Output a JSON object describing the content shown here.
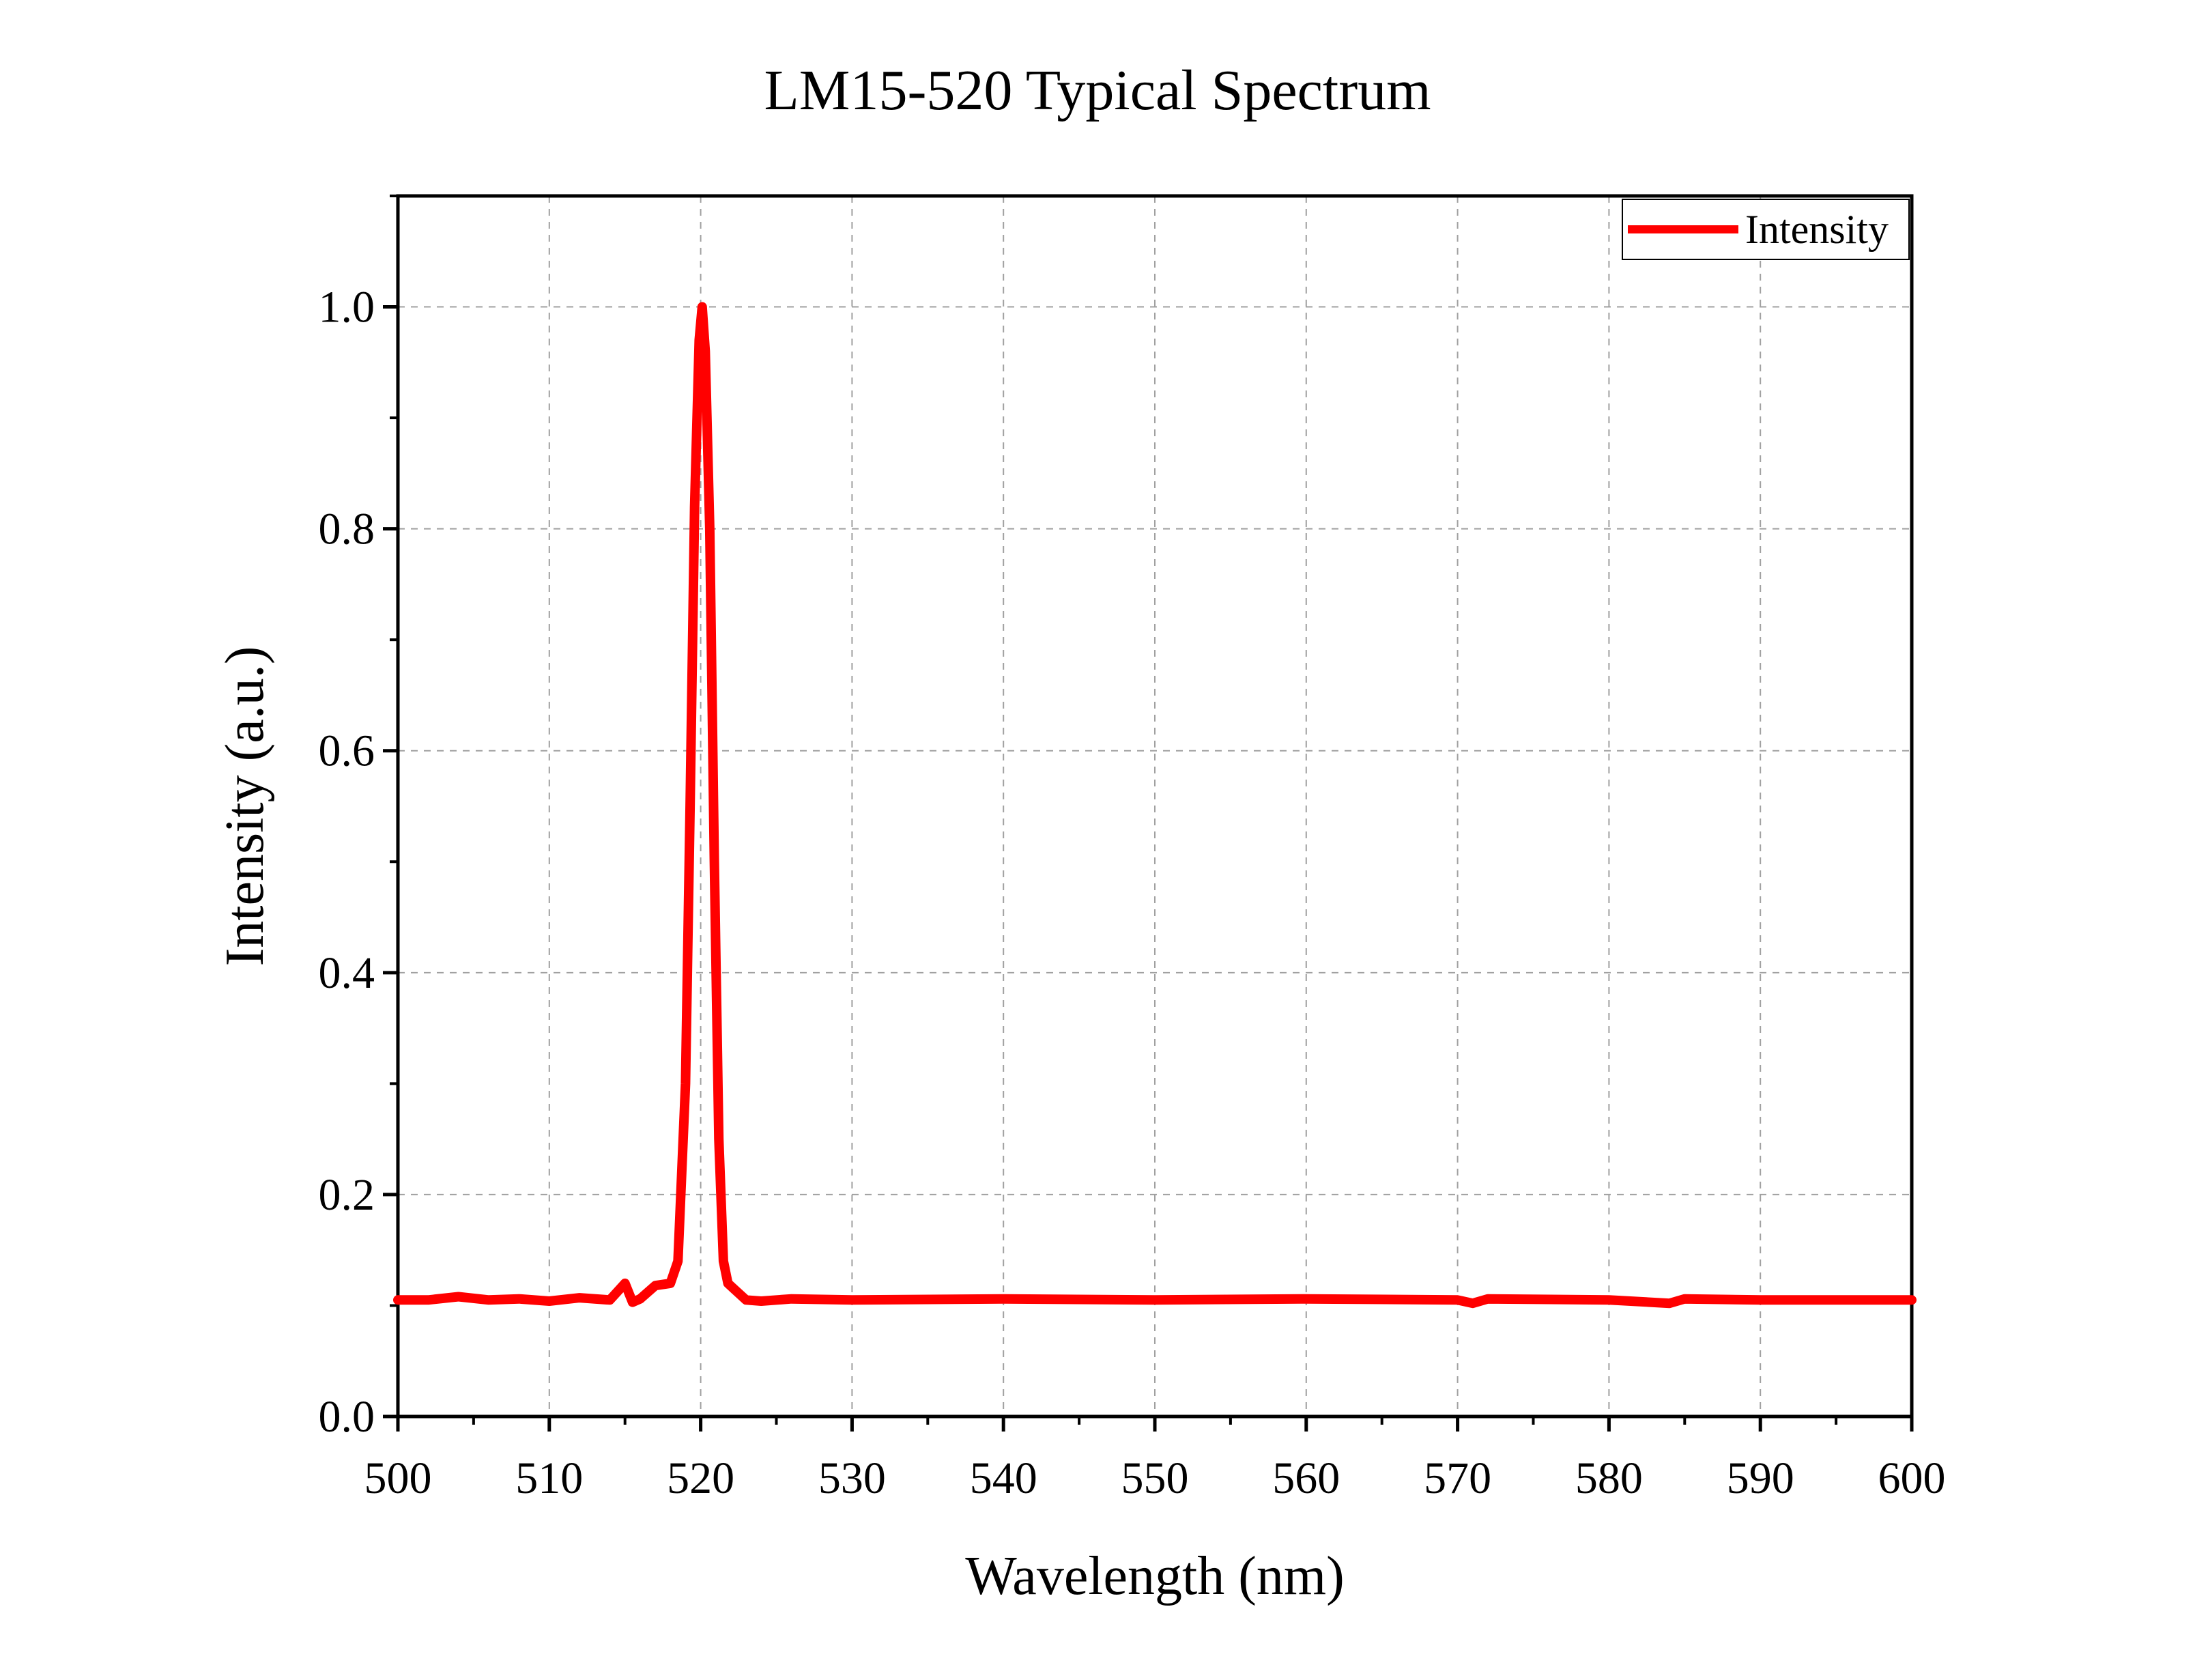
{
  "chart_data": {
    "type": "line",
    "title": "LM15-520 Typical Spectrum",
    "xlabel": "Wavelength (nm)",
    "ylabel": "Intensity (a.u.)",
    "xlim": [
      500,
      600
    ],
    "ylim": [
      0,
      1.1
    ],
    "x_ticks": [
      500,
      510,
      520,
      530,
      540,
      550,
      560,
      570,
      580,
      590,
      600
    ],
    "x_tick_labels": [
      "500",
      "510",
      "520",
      "530",
      "540",
      "550",
      "560",
      "570",
      "580",
      "590",
      "600"
    ],
    "y_ticks": [
      0,
      0.2,
      0.4,
      0.6,
      0.8,
      1.0
    ],
    "y_tick_labels": [
      "0.0",
      "0.2",
      "0.4",
      "0.6",
      "0.8",
      "1.0"
    ],
    "grid": true,
    "legend_position": "top-right",
    "series": [
      {
        "name": "Intensity",
        "color": "#ff0000",
        "x": [
          500,
          502,
          504,
          506,
          508,
          510,
          512,
          514,
          515,
          515.5,
          516,
          517,
          518,
          518.5,
          519,
          519.3,
          519.6,
          519.9,
          520.1,
          520.3,
          520.6,
          520.9,
          521.2,
          521.5,
          521.8,
          522.2,
          523,
          524,
          526,
          530,
          540,
          550,
          560,
          570,
          571,
          572,
          580,
          584,
          585,
          590,
          600
        ],
        "y": [
          0.105,
          0.105,
          0.108,
          0.105,
          0.106,
          0.104,
          0.107,
          0.105,
          0.12,
          0.103,
          0.106,
          0.118,
          0.12,
          0.14,
          0.3,
          0.55,
          0.82,
          0.97,
          1.0,
          0.96,
          0.8,
          0.5,
          0.25,
          0.14,
          0.12,
          0.115,
          0.105,
          0.104,
          0.106,
          0.105,
          0.106,
          0.105,
          0.106,
          0.105,
          0.102,
          0.106,
          0.105,
          0.102,
          0.106,
          0.105,
          0.105
        ]
      }
    ]
  }
}
